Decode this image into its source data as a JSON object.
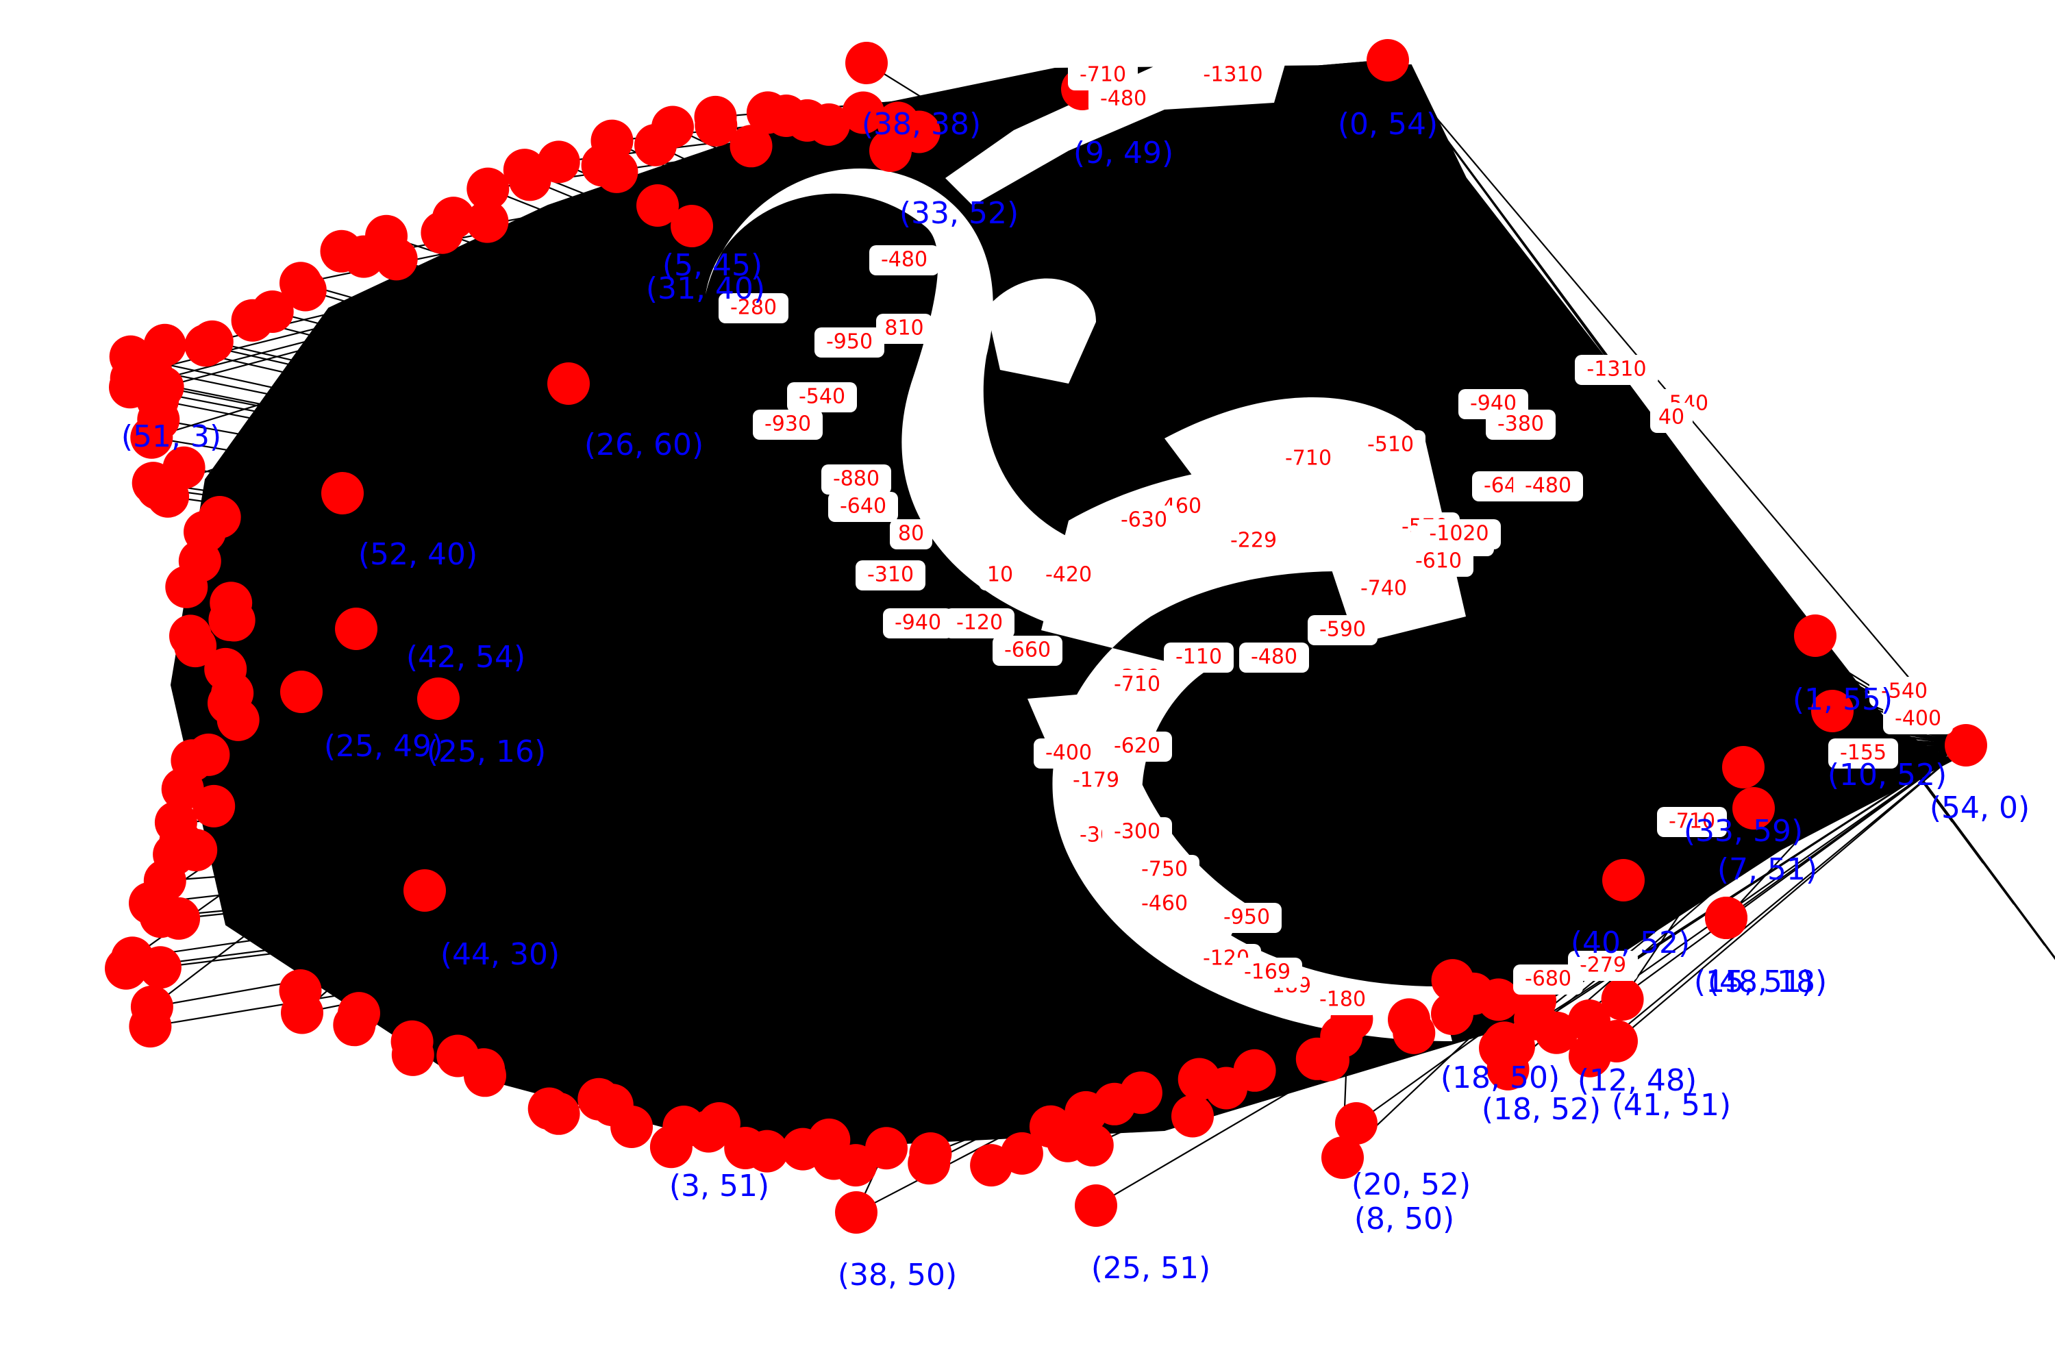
{
  "graph": {
    "type": "network-diagram",
    "node_color": "#ff0000",
    "node_label_color": "#0000ff",
    "edge_color": "#000000",
    "edge_label_color": "#ff0000",
    "nodes": [
      "(0, 54)",
      "(9, 49)",
      "(38, 38)",
      "(54, 0)",
      "(1, 55)",
      "(10, 52)",
      "(33, 59)",
      "(7, 51)",
      "(15, 51)",
      "(40, 52)",
      "(48, 18)",
      "(42, 54)",
      "(51, 3)",
      "(18, 50)",
      "(18, 52)",
      "(3, 51)",
      "(25, 16)",
      "(25, 49)",
      "(52, 40)",
      "(31, 40)",
      "(33, 52)",
      "(5, 45)",
      "(20, 52)",
      "(12, 48)",
      "(8, 50)",
      "(25, 51)",
      "(44, 30)",
      "(38, 50)",
      "(26, 60)",
      "(41, 51)"
    ],
    "edge_labels": [
      "-1310",
      "-1310",
      "-540",
      "40",
      "-940",
      "-380",
      "-640",
      "-480",
      "-570",
      "-1020",
      "-610",
      "-740",
      "-590",
      "-480",
      "-540",
      "-400",
      "-155",
      "-189",
      "-710",
      "-179",
      "-620",
      "-400",
      "-300",
      "-750",
      "-460",
      "-950",
      "-120",
      "-180",
      "-169",
      "-420",
      "-660",
      "-309",
      "-110",
      "-460",
      "-630",
      "-229",
      "-710",
      "-510",
      "-120",
      "-940",
      "-310",
      "-880",
      "-640",
      "-930",
      "-540",
      "810",
      "-950",
      "-280",
      "-480",
      "-480",
      "-710",
      "-279",
      "-680",
      "-300",
      "80",
      "10",
      "-1020",
      "-710"
    ]
  }
}
